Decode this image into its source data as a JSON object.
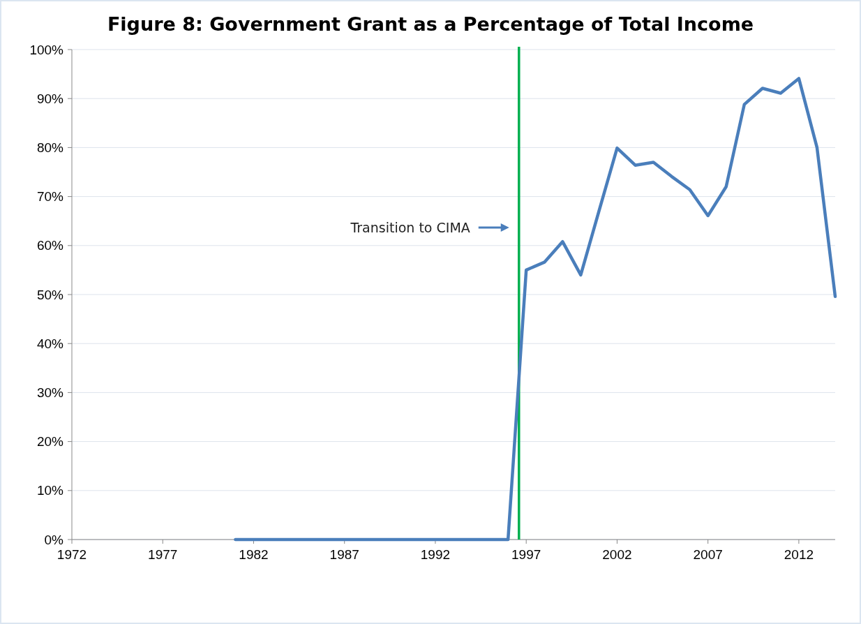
{
  "chart_data": {
    "type": "line",
    "title": "Figure 8: Government Grant as a Percentage of Total Income",
    "x": [
      1981,
      1982,
      1983,
      1984,
      1985,
      1986,
      1987,
      1988,
      1989,
      1990,
      1991,
      1992,
      1993,
      1994,
      1995,
      1996,
      1997,
      1998,
      1999,
      2000,
      2001,
      2002,
      2003,
      2004,
      2005,
      2006,
      2007,
      2008,
      2009,
      2010,
      2011,
      2012,
      2013,
      2014
    ],
    "series": [
      {
        "color": "#4a7ebb",
        "values": [
          0,
          0,
          0,
          0,
          0,
          0,
          0,
          0,
          0,
          0,
          0,
          0,
          0,
          0,
          0,
          0,
          55,
          56.6,
          60.8,
          54,
          67,
          79.9,
          76.4,
          77,
          74.1,
          71.4,
          66.1,
          72,
          88.8,
          92.1,
          91.1,
          94.1,
          80,
          49.6
        ]
      }
    ],
    "xlim": [
      1972,
      2014
    ],
    "xticks": [
      1972,
      1977,
      1982,
      1987,
      1992,
      1997,
      2002,
      2007,
      2012
    ],
    "ylim": [
      0,
      100
    ],
    "yticks": [
      {
        "value": 0,
        "label": "0%"
      },
      {
        "value": 10,
        "label": "10%"
      },
      {
        "value": 20,
        "label": "20%"
      },
      {
        "value": 30,
        "label": "30%"
      },
      {
        "value": 40,
        "label": "40%"
      },
      {
        "value": 50,
        "label": "50%"
      },
      {
        "value": 60,
        "label": "60%"
      },
      {
        "value": 70,
        "label": "70%"
      },
      {
        "value": 80,
        "label": "80%"
      },
      {
        "value": 90,
        "label": "90%"
      },
      {
        "value": 100,
        "label": "100%"
      }
    ],
    "grid": "y",
    "marker": "none",
    "line_style": "solid",
    "ref_lines": [
      {
        "axis": "x",
        "value": 1996.6,
        "color": "#00b050",
        "line_style": "solid"
      }
    ],
    "annotations": [
      "Transition to CIMA"
    ]
  }
}
